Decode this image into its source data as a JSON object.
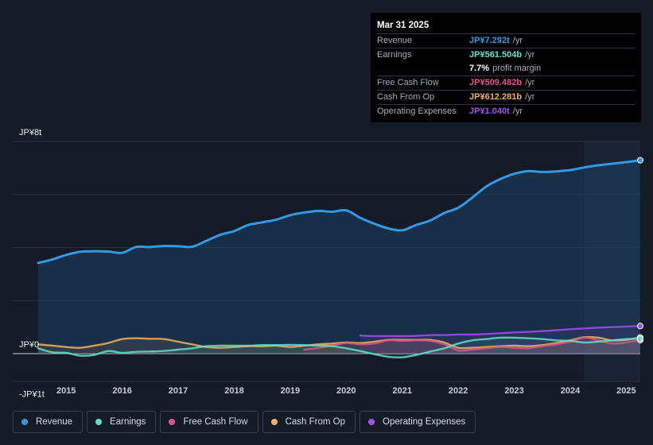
{
  "tooltip": {
    "date": "Mar 31 2025",
    "rows": [
      {
        "label": "Revenue",
        "value": "JP¥7.292t",
        "unit": "/yr",
        "color": "#2f9ae8"
      },
      {
        "label": "Earnings",
        "value": "JP¥561.504b",
        "unit": "/yr",
        "color": "#5fe0c9"
      },
      {
        "label": "",
        "value": "7.7%",
        "unit": "profit margin",
        "color": "#ffffff"
      },
      {
        "label": "Free Cash Flow",
        "value": "JP¥509.482b",
        "unit": "/yr",
        "color": "#e0508a"
      },
      {
        "label": "Cash From Op",
        "value": "JP¥612.281b",
        "unit": "/yr",
        "color": "#f0b060"
      },
      {
        "label": "Operating Expenses",
        "value": "JP¥1.040t",
        "unit": "/yr",
        "color": "#a04ff0"
      }
    ]
  },
  "chart_data": {
    "type": "line",
    "title": "",
    "ylim": [
      -1,
      8
    ],
    "y_tick_labels": [
      {
        "value": 8,
        "label": "JP¥8t"
      },
      {
        "value": 0,
        "label": "JP¥0"
      },
      {
        "value": -1,
        "label": "-JP¥1t"
      }
    ],
    "gridlines": [
      8,
      6,
      4,
      2,
      0
    ],
    "x_ticks": [
      2015,
      2016,
      2017,
      2018,
      2019,
      2020,
      2021,
      2022,
      2023,
      2024,
      2025
    ],
    "x_tick_labels": [
      "2015",
      "2016",
      "2017",
      "2018",
      "2019",
      "2020",
      "2021",
      "2022",
      "2023",
      "2024",
      "2025"
    ],
    "xlim": [
      2014.5,
      2025.25
    ],
    "highlight_start": 2024.25,
    "series": [
      {
        "name": "Revenue",
        "color": "#2f9ae8",
        "fill": true,
        "x": [
          2014.5,
          2014.75,
          2015.0,
          2015.25,
          2015.5,
          2015.75,
          2016.0,
          2016.25,
          2016.5,
          2016.75,
          2017.0,
          2017.25,
          2017.5,
          2017.75,
          2018.0,
          2018.25,
          2018.5,
          2018.75,
          2019.0,
          2019.25,
          2019.5,
          2019.75,
          2020.0,
          2020.25,
          2020.5,
          2020.75,
          2021.0,
          2021.25,
          2021.5,
          2021.75,
          2022.0,
          2022.25,
          2022.5,
          2022.75,
          2023.0,
          2023.25,
          2023.5,
          2023.75,
          2024.0,
          2024.25,
          2024.5,
          2024.75,
          2025.0,
          2025.25
        ],
        "values": [
          3.42,
          3.55,
          3.72,
          3.84,
          3.86,
          3.85,
          3.8,
          4.02,
          4.02,
          4.06,
          4.05,
          4.03,
          4.25,
          4.48,
          4.62,
          4.85,
          4.95,
          5.05,
          5.22,
          5.32,
          5.38,
          5.35,
          5.4,
          5.12,
          4.9,
          4.72,
          4.65,
          4.85,
          5.02,
          5.3,
          5.5,
          5.88,
          6.3,
          6.58,
          6.78,
          6.88,
          6.85,
          6.87,
          6.92,
          7.02,
          7.1,
          7.16,
          7.22,
          7.292
        ]
      },
      {
        "name": "Earnings",
        "color": "#5fe0c9",
        "fill": false,
        "x": [
          2014.5,
          2014.75,
          2015.0,
          2015.25,
          2015.5,
          2015.75,
          2016.0,
          2016.25,
          2016.5,
          2016.75,
          2017.0,
          2017.25,
          2017.5,
          2017.75,
          2018.0,
          2018.25,
          2018.5,
          2018.75,
          2019.0,
          2019.25,
          2019.5,
          2019.75,
          2020.0,
          2020.25,
          2020.5,
          2020.75,
          2021.0,
          2021.25,
          2021.5,
          2021.75,
          2022.0,
          2022.25,
          2022.5,
          2022.75,
          2023.0,
          2023.25,
          2023.5,
          2023.75,
          2024.0,
          2024.25,
          2024.5,
          2024.75,
          2025.0,
          2025.25
        ],
        "values": [
          0.2,
          0.05,
          0.03,
          -0.08,
          -0.05,
          0.1,
          0.03,
          0.07,
          0.08,
          0.1,
          0.15,
          0.2,
          0.28,
          0.3,
          0.3,
          0.3,
          0.32,
          0.32,
          0.33,
          0.32,
          0.3,
          0.28,
          0.2,
          0.1,
          -0.02,
          -0.12,
          -0.14,
          -0.05,
          0.08,
          0.2,
          0.38,
          0.5,
          0.55,
          0.6,
          0.6,
          0.58,
          0.55,
          0.5,
          0.48,
          0.42,
          0.45,
          0.5,
          0.55,
          0.561
        ]
      },
      {
        "name": "Free Cash Flow",
        "color": "#e0508a",
        "fill": false,
        "x": [
          2019.25,
          2019.5,
          2019.75,
          2020.0,
          2020.25,
          2020.5,
          2020.75,
          2021.0,
          2021.25,
          2021.5,
          2021.75,
          2022.0,
          2022.25,
          2022.5,
          2022.75,
          2023.0,
          2023.25,
          2023.5,
          2023.75,
          2024.0,
          2024.25,
          2024.5,
          2024.75,
          2025.0,
          2025.25
        ],
        "values": [
          0.15,
          0.22,
          0.3,
          0.4,
          0.35,
          0.38,
          0.5,
          0.48,
          0.5,
          0.48,
          0.35,
          0.12,
          0.15,
          0.2,
          0.25,
          0.22,
          0.2,
          0.28,
          0.35,
          0.45,
          0.6,
          0.5,
          0.38,
          0.42,
          0.509
        ]
      },
      {
        "name": "Cash From Op",
        "color": "#f0b060",
        "fill": false,
        "x": [
          2014.5,
          2014.75,
          2015.0,
          2015.25,
          2015.5,
          2015.75,
          2016.0,
          2016.25,
          2016.5,
          2016.75,
          2017.0,
          2017.25,
          2017.5,
          2017.75,
          2018.0,
          2018.25,
          2018.5,
          2018.75,
          2019.0,
          2019.25,
          2019.5,
          2019.75,
          2020.0,
          2020.25,
          2020.5,
          2020.75,
          2021.0,
          2021.25,
          2021.5,
          2021.75,
          2022.0,
          2022.25,
          2022.5,
          2022.75,
          2023.0,
          2023.25,
          2023.5,
          2023.75,
          2024.0,
          2024.25,
          2024.5,
          2024.75,
          2025.0,
          2025.25
        ],
        "values": [
          0.35,
          0.3,
          0.25,
          0.22,
          0.3,
          0.4,
          0.55,
          0.58,
          0.56,
          0.55,
          0.45,
          0.35,
          0.25,
          0.22,
          0.25,
          0.28,
          0.28,
          0.3,
          0.25,
          0.3,
          0.35,
          0.38,
          0.42,
          0.4,
          0.45,
          0.52,
          0.52,
          0.52,
          0.52,
          0.42,
          0.22,
          0.22,
          0.25,
          0.28,
          0.3,
          0.28,
          0.32,
          0.4,
          0.5,
          0.62,
          0.6,
          0.5,
          0.52,
          0.612
        ]
      },
      {
        "name": "Operating Expenses",
        "color": "#a04ff0",
        "fill": false,
        "x": [
          2020.25,
          2020.5,
          2020.75,
          2021.0,
          2021.25,
          2021.5,
          2021.75,
          2022.0,
          2022.25,
          2022.5,
          2022.75,
          2023.0,
          2023.25,
          2023.5,
          2023.75,
          2024.0,
          2024.25,
          2024.5,
          2024.75,
          2025.0,
          2025.25
        ],
        "values": [
          0.68,
          0.66,
          0.66,
          0.66,
          0.67,
          0.7,
          0.7,
          0.72,
          0.72,
          0.74,
          0.77,
          0.8,
          0.82,
          0.85,
          0.88,
          0.92,
          0.95,
          0.98,
          1.0,
          1.02,
          1.04
        ]
      }
    ]
  },
  "legend": [
    {
      "label": "Revenue",
      "color": "#2f9ae8"
    },
    {
      "label": "Earnings",
      "color": "#5fe0c9"
    },
    {
      "label": "Free Cash Flow",
      "color": "#e0508a"
    },
    {
      "label": "Cash From Op",
      "color": "#f0b060"
    },
    {
      "label": "Operating Expenses",
      "color": "#a04ff0"
    }
  ]
}
